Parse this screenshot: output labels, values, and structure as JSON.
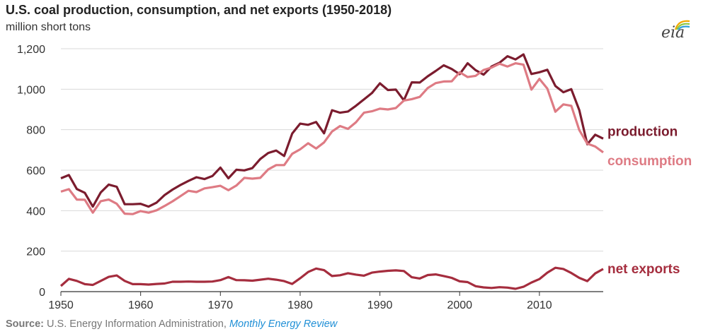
{
  "header": {
    "title": "U.S. coal production, consumption, and net exports (1950-2018)",
    "subtitle": "million short tons"
  },
  "logo": {
    "text": "eia"
  },
  "footer": {
    "source_label": "Source:",
    "source_org": "U.S. Energy Information Administration,",
    "source_publication": "Monthly Energy Review"
  },
  "colors": {
    "production": "#7b1c2e",
    "consumption": "#de7b84",
    "net_exports": "#a52d3e",
    "grid": "#d9d9d9",
    "axis": "#333333",
    "logo_arc_1": "#f2a900",
    "logo_arc_2": "#8cc63f",
    "logo_arc_3": "#2f9fd8"
  },
  "chart_data": {
    "type": "line",
    "title": "U.S. coal production, consumption, and net exports (1950-2018)",
    "ylabel": "million short tons",
    "xlim": [
      1950,
      2018
    ],
    "ylim": [
      0,
      1200
    ],
    "x_ticks": [
      1950,
      1960,
      1970,
      1980,
      1990,
      2000,
      2010
    ],
    "y_ticks": [
      0,
      200,
      400,
      600,
      800,
      1000,
      1200
    ],
    "y_tick_labels": [
      "0",
      "200",
      "400",
      "600",
      "800",
      "1,000",
      "1,200"
    ],
    "x_tick_labels": [
      "1950",
      "1960",
      "1970",
      "1980",
      "1990",
      "2000",
      "2010"
    ],
    "grid": "horizontal",
    "legend": "direct labels at right end of lines",
    "x": [
      1950,
      1951,
      1952,
      1953,
      1954,
      1955,
      1956,
      1957,
      1958,
      1959,
      1960,
      1961,
      1962,
      1963,
      1964,
      1965,
      1966,
      1967,
      1968,
      1969,
      1970,
      1971,
      1972,
      1973,
      1974,
      1975,
      1976,
      1977,
      1978,
      1979,
      1980,
      1981,
      1982,
      1983,
      1984,
      1985,
      1986,
      1987,
      1988,
      1989,
      1990,
      1991,
      1992,
      1993,
      1994,
      1995,
      1996,
      1997,
      1998,
      1999,
      2000,
      2001,
      2002,
      2003,
      2004,
      2005,
      2006,
      2007,
      2008,
      2009,
      2010,
      2011,
      2012,
      2013,
      2014,
      2015,
      2016,
      2017,
      2018
    ],
    "series": [
      {
        "name": "production",
        "color_key": "production",
        "values": [
          560,
          576,
          507,
          488,
          420,
          490,
          529,
          518,
          432,
          432,
          434,
          420,
          440,
          477,
          504,
          527,
          547,
          565,
          556,
          571,
          613,
          560,
          602,
          599,
          610,
          655,
          685,
          697,
          670,
          781,
          830,
          824,
          838,
          782,
          896,
          884,
          890,
          918,
          950,
          981,
          1029,
          996,
          998,
          945,
          1034,
          1033,
          1064,
          1090,
          1118,
          1100,
          1074,
          1128,
          1094,
          1072,
          1112,
          1131,
          1163,
          1147,
          1172,
          1075,
          1084,
          1096,
          1016,
          985,
          1000,
          897,
          728,
          775,
          756
        ]
      },
      {
        "name": "consumption",
        "color_key": "consumption",
        "values": [
          494,
          506,
          455,
          454,
          390,
          447,
          455,
          434,
          385,
          383,
          398,
          390,
          402,
          423,
          446,
          472,
          498,
          492,
          510,
          516,
          523,
          501,
          524,
          562,
          558,
          562,
          604,
          625,
          625,
          681,
          703,
          733,
          707,
          737,
          791,
          818,
          804,
          837,
          884,
          891,
          904,
          900,
          907,
          944,
          951,
          962,
          1006,
          1030,
          1038,
          1039,
          1084,
          1060,
          1066,
          1095,
          1107,
          1126,
          1112,
          1128,
          1121,
          998,
          1051,
          1003,
          889,
          925,
          918,
          798,
          731,
          717,
          688
        ]
      },
      {
        "name": "net exports",
        "color_key": "net_exports",
        "values": [
          28,
          63,
          53,
          37,
          33,
          53,
          73,
          80,
          53,
          37,
          37,
          35,
          38,
          40,
          49,
          49,
          50,
          49,
          49,
          50,
          57,
          72,
          57,
          56,
          54,
          59,
          64,
          59,
          52,
          38,
          66,
          97,
          114,
          106,
          77,
          81,
          91,
          84,
          79,
          94,
          99,
          103,
          105,
          102,
          71,
          65,
          82,
          85,
          77,
          68,
          51,
          47,
          27,
          21,
          18,
          22,
          20,
          14,
          24,
          45,
          62,
          94,
          118,
          112,
          92,
          68,
          52,
          90,
          112
        ]
      }
    ]
  }
}
